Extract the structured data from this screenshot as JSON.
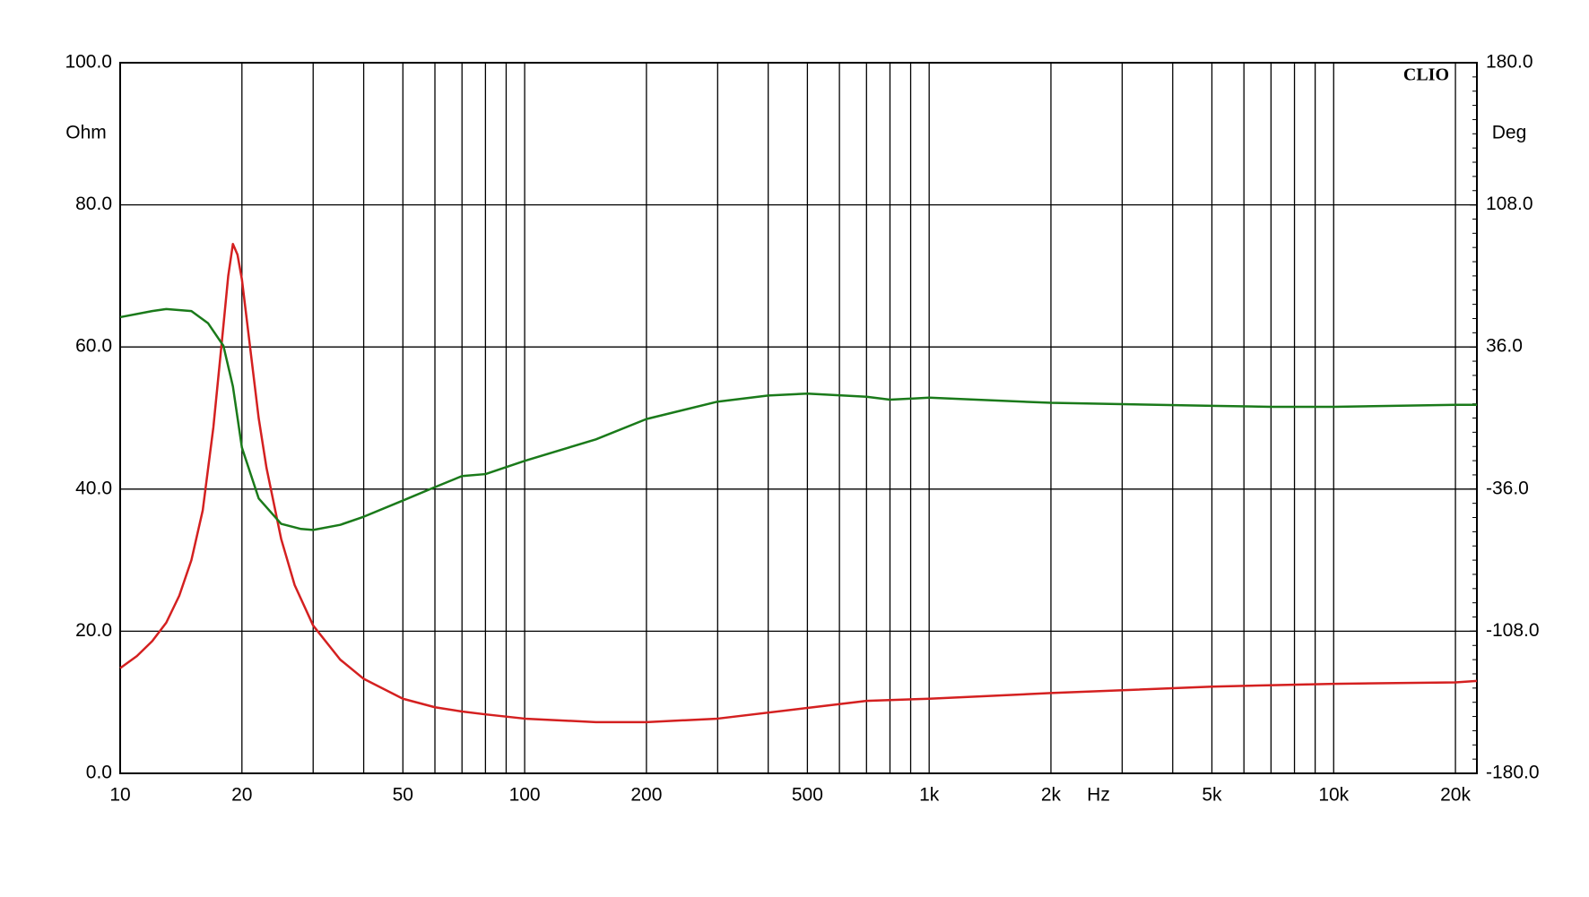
{
  "chart_data": {
    "type": "line",
    "brand": "CLIO",
    "ylabel": "Ohm",
    "y2label": "Deg",
    "xlabel": "Hz",
    "xscale": "log",
    "grid": true,
    "xlim": [
      10,
      22600
    ],
    "xticks": [
      10,
      20,
      50,
      100,
      200,
      500,
      {
        "value": 1000,
        "label": "1k"
      },
      {
        "value": 2000,
        "label": "2k"
      },
      {
        "value": 5000,
        "label": "5k"
      },
      {
        "value": 10000,
        "label": "10k"
      },
      {
        "value": 20000,
        "label": "20k"
      }
    ],
    "xminor": [
      30,
      40,
      60,
      70,
      80,
      90,
      300,
      400,
      600,
      700,
      800,
      900,
      3000,
      4000,
      6000,
      7000,
      8000,
      9000
    ],
    "ylim": [
      0,
      100
    ],
    "yticks": [
      {
        "value": 0,
        "label": "0.0"
      },
      {
        "value": 20,
        "label": "20.0"
      },
      {
        "value": 40,
        "label": "40.0"
      },
      {
        "value": 60,
        "label": "60.0"
      },
      {
        "value": 80,
        "label": "80.0"
      },
      {
        "value": 100,
        "label": "100.0"
      }
    ],
    "y2lim": [
      -180,
      180
    ],
    "y2ticks": [
      {
        "value": -180,
        "label": "-180.0"
      },
      {
        "value": -108,
        "label": "-108.0"
      },
      {
        "value": -36,
        "label": "-36.0"
      },
      {
        "value": 36,
        "label": "36.0"
      },
      {
        "value": 108,
        "label": "108.0"
      },
      {
        "value": 180,
        "label": "180.0"
      }
    ],
    "series": [
      {
        "color": "#d42020",
        "x": [
          10,
          11,
          12,
          13,
          14,
          15,
          16,
          17,
          18,
          18.5,
          19,
          19.5,
          20,
          21,
          22,
          23,
          25,
          27,
          30,
          35,
          40,
          50,
          60,
          70,
          80,
          100,
          150,
          200,
          300,
          500,
          700,
          1000,
          2000,
          5000,
          10000,
          20000,
          22600
        ],
        "values": [
          14.8,
          16.5,
          18.6,
          21.2,
          25,
          30,
          37,
          48.7,
          63,
          70,
          74.5,
          73,
          69.5,
          59.5,
          50,
          43,
          33,
          26.5,
          20.8,
          16,
          13.3,
          10.5,
          9.3,
          8.7,
          8.3,
          7.7,
          7.2,
          7.2,
          7.7,
          9.2,
          10.2,
          10.5,
          11.3,
          12.2,
          12.6,
          12.8,
          13
        ]
      },
      {
        "color": "#1a7a1a",
        "axis": "y2",
        "x": [
          10,
          12,
          13,
          15,
          16.5,
          18,
          19,
          20,
          22,
          25,
          28,
          30,
          35,
          40,
          50,
          60,
          70,
          80,
          100,
          150,
          200,
          300,
          400,
          500,
          700,
          800,
          1000,
          2000,
          5000,
          7000,
          10000,
          20000,
          22600
        ],
        "values": [
          51.1,
          54.2,
          55.2,
          54.2,
          48,
          36.6,
          16,
          -15,
          -40.7,
          -53.6,
          -56.2,
          -56.7,
          -54.1,
          -50,
          -41.8,
          -35,
          -29.4,
          -28.4,
          -21.7,
          -10.8,
          -0.5,
          8.3,
          11.4,
          12.4,
          10.8,
          9.3,
          10.3,
          7.7,
          6.2,
          5.7,
          5.7,
          6.7,
          6.7
        ]
      }
    ]
  }
}
